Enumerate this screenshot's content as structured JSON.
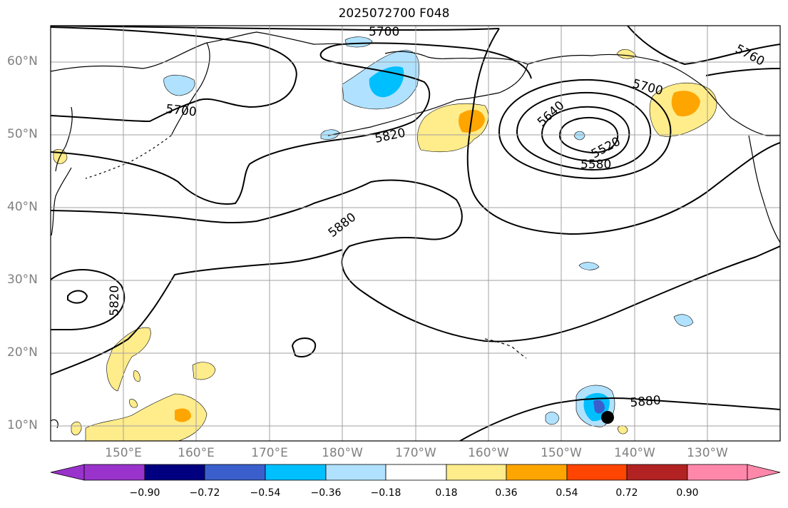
{
  "title": "2025072700 F048",
  "lat_labels": [
    "60°N",
    "50°N",
    "40°N",
    "30°N",
    "20°N",
    "10°N"
  ],
  "lon_labels": [
    "150°E",
    "160°E",
    "170°E",
    "180°W",
    "170°W",
    "160°W",
    "150°W",
    "140°W",
    "130°W"
  ],
  "contour_labels": [
    "5700",
    "5760",
    "5700",
    "5700",
    "5640",
    "5820",
    "5520",
    "5580",
    "5880",
    "5820",
    "5880"
  ],
  "colorbar": {
    "tick_labels": [
      "−0.90",
      "−0.72",
      "−0.54",
      "−0.36",
      "−0.18",
      "0.18",
      "0.36",
      "0.54",
      "0.72",
      "0.90"
    ],
    "colors": [
      "#9933cc",
      "#000080",
      "#3a5fcd",
      "#00bfff",
      "#b0e2ff",
      "#ffffff",
      "#ffec8b",
      "#ffa500",
      "#ff4500",
      "#b22222",
      "#ff88aa"
    ]
  },
  "colors": {
    "light_blue": "#b0e2ff",
    "blue": "#00bfff",
    "mid_blue": "#3a5fcd",
    "yellow": "#ffec8b",
    "orange": "#ffa500",
    "grid": "#a0a0a0",
    "marker": "#000000"
  }
}
